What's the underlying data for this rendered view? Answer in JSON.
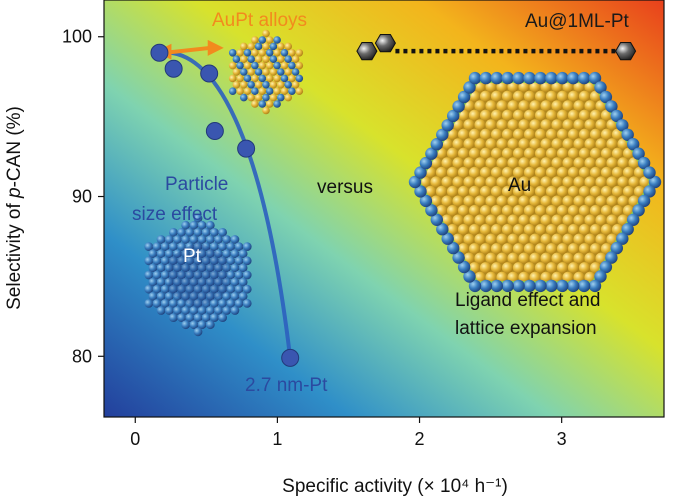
{
  "chart_data": {
    "type": "scatter",
    "xlabel": "Specific activity (× 10⁴ h⁻¹)",
    "ylabel_prefix": "Selectivity of ",
    "ylabel_italic": "p",
    "ylabel_suffix": "-CAN (%)",
    "xlim": [
      -0.22,
      3.72
    ],
    "ylim": [
      76.2,
      102.3
    ],
    "x_ticks": [
      0,
      1,
      2,
      3
    ],
    "y_ticks": [
      80,
      90,
      100
    ],
    "grid": false,
    "series": [
      {
        "name": "Pt",
        "color": "#3a56b0",
        "points": [
          {
            "x": 0.17,
            "y": 99.0
          },
          {
            "x": 0.27,
            "y": 98.0
          },
          {
            "x": 0.52,
            "y": 97.7
          },
          {
            "x": 0.56,
            "y": 94.1
          },
          {
            "x": 0.78,
            "y": 93.0
          },
          {
            "x": 1.09,
            "y": 79.9
          }
        ]
      },
      {
        "name": "AuPt",
        "color": "#f28a1e",
        "points": [
          {
            "x": 0.17,
            "y": 99.0
          },
          {
            "x": 0.58,
            "y": 99.3
          }
        ]
      },
      {
        "name": "Au@1ML-Pt",
        "color": "#222222",
        "points": [
          {
            "x": 1.63,
            "y": 99.1
          },
          {
            "x": 1.76,
            "y": 99.6
          },
          {
            "x": 3.45,
            "y": 99.1
          }
        ]
      }
    ],
    "annotations": {
      "aupt": "AuPt alloys",
      "auml": "Au@1ML-Pt",
      "particle_line1": "Particle",
      "particle_line2": "size effect",
      "versus": "versus",
      "pt_label": "Pt",
      "au_label": "Au",
      "ligand_line1": "Ligand effect and",
      "ligand_line2": "lattice expansion",
      "nm_label": "2.7 nm-Pt"
    },
    "colors": {
      "gradient_low": "#2a4fa8",
      "gradient_mid": "#e6e020",
      "gradient_high": "#e8401c",
      "pt_marker": "#3a56b0",
      "aupt_marker": "#f28a1e"
    }
  }
}
